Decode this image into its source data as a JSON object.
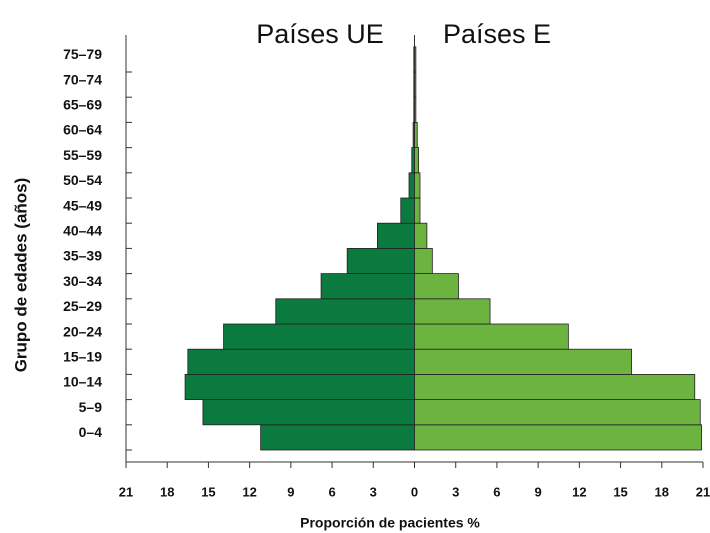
{
  "chart_data": {
    "type": "pyramid",
    "xlabel": "Proporción de pacientes %",
    "ylabel": "Grupo de edades (años)",
    "categories": [
      "0–4",
      "5–9",
      "10–14",
      "15–19",
      "20–24",
      "25–29",
      "30–34",
      "35–39",
      "40–44",
      "45–49",
      "50–54",
      "55–59",
      "60–64",
      "65–69",
      "70–74",
      "75–79"
    ],
    "series": [
      {
        "name": "Países UE",
        "color": "#0b7a3e",
        "side": "left",
        "values": [
          11.2,
          15.4,
          16.7,
          16.5,
          13.9,
          10.1,
          6.8,
          4.9,
          2.7,
          1.0,
          0.4,
          0.2,
          0.1,
          0.05,
          0.05,
          0.05
        ]
      },
      {
        "name": "Países E",
        "color": "#6db33f",
        "side": "right",
        "values": [
          20.9,
          20.8,
          20.4,
          15.8,
          11.2,
          5.5,
          3.2,
          1.3,
          0.9,
          0.4,
          0.4,
          0.3,
          0.2,
          0.1,
          0.1,
          0.1
        ]
      }
    ],
    "xlim": [
      -21,
      21
    ],
    "xticks": [
      {
        "value": -21,
        "label": "21"
      },
      {
        "value": -18,
        "label": "18"
      },
      {
        "value": -15,
        "label": "15"
      },
      {
        "value": -12,
        "label": "12"
      },
      {
        "value": -9,
        "label": "9"
      },
      {
        "value": -6,
        "label": "6"
      },
      {
        "value": -3,
        "label": "3"
      },
      0,
      3,
      6,
      9,
      12,
      15,
      18,
      21
    ]
  }
}
